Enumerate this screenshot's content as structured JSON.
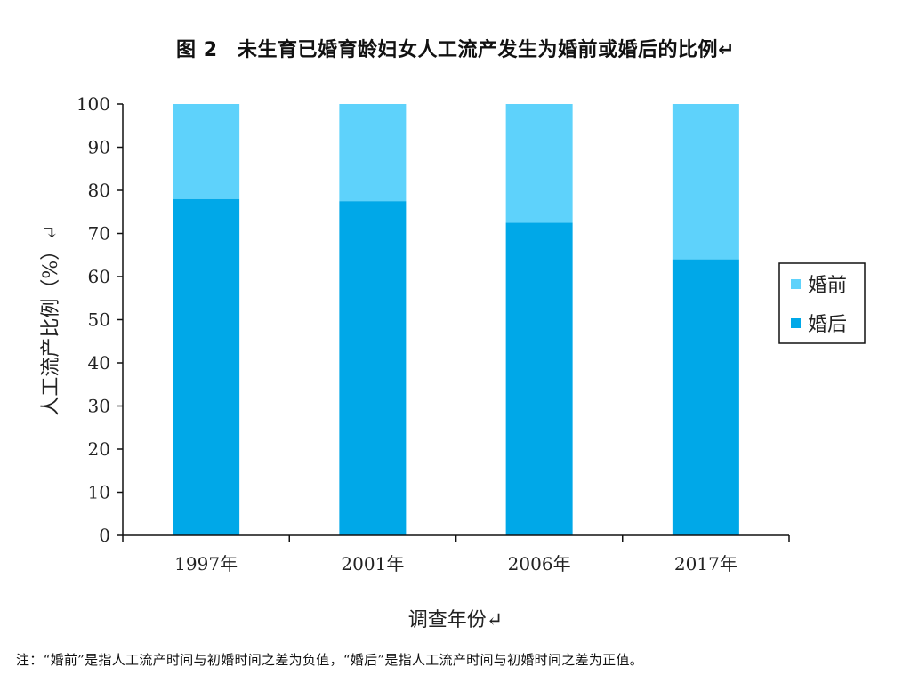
{
  "chart_data": {
    "type": "bar",
    "stacked": true,
    "title": "图 2　未生育已婚育龄妇女人工流产发生为婚前或婚后的比例↵",
    "xlabel": "调查年份↵",
    "ylabel": "人工流产比例（%）↵",
    "categories": [
      "1997年",
      "2001年",
      "2006年",
      "2017年"
    ],
    "series": [
      {
        "name": "婚后",
        "color": "#00a8e8",
        "values": [
          78.0,
          77.5,
          72.5,
          64.0
        ]
      },
      {
        "name": "婚前",
        "color": "#5ed2fb",
        "values": [
          22.0,
          22.5,
          27.5,
          36.0
        ]
      }
    ],
    "ylim": [
      0,
      100
    ],
    "yticks": [
      "0",
      "10",
      "20",
      "30",
      "40",
      "50",
      "60",
      "70",
      "80",
      "90",
      "100"
    ],
    "legend": {
      "position": "right",
      "items": [
        "婚前",
        "婚后"
      ]
    }
  },
  "note": "注：“婚前”是指人工流产时间与初婚时间之差为负值，“婚后”是指人工流产时间与初婚时间之差为正值。"
}
